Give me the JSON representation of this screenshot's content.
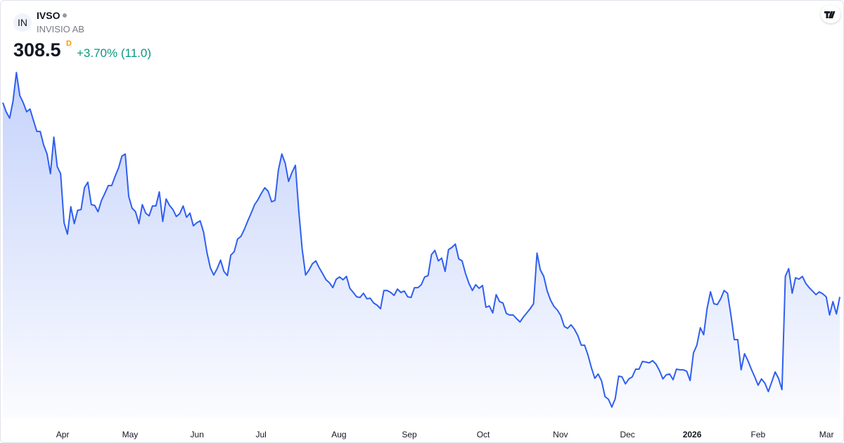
{
  "header": {
    "logo": "IN",
    "symbol": "IVSO",
    "name": "INVISIO AB",
    "price": "308.5",
    "interval": "D",
    "change": "+3.70% (11.0)"
  },
  "chart_data": {
    "type": "area",
    "xlim": [
      0,
      246
    ],
    "ylim": [
      230,
      500
    ],
    "xticks": [
      {
        "value": 17.6,
        "label": "Apr"
      },
      {
        "value": 37.4,
        "label": "May"
      },
      {
        "value": 57.1,
        "label": "Jun"
      },
      {
        "value": 75.9,
        "label": "Jul"
      },
      {
        "value": 98.8,
        "label": "Aug"
      },
      {
        "value": 119.5,
        "label": "Sep"
      },
      {
        "value": 141.2,
        "label": "Oct"
      },
      {
        "value": 163.9,
        "label": "Nov"
      },
      {
        "value": 183.6,
        "label": "Dec"
      },
      {
        "value": 202.6,
        "label": "2026",
        "bold": true
      },
      {
        "value": 222,
        "label": "Feb"
      },
      {
        "value": 242.1,
        "label": "Mar"
      }
    ],
    "series": [
      {
        "color": "#2f5ff0",
        "values": [
          434.1,
          428.2,
          424.1,
          435.0,
          453.6,
          438.6,
          434.1,
          428.2,
          430.0,
          422.7,
          415.5,
          415.5,
          406.8,
          400.9,
          388.2,
          411.8,
          392.7,
          388.2,
          356.4,
          349.1,
          366.8,
          355.9,
          364.5,
          365.0,
          379.1,
          382.7,
          368.2,
          367.7,
          363.6,
          370.9,
          375.5,
          380.5,
          380.5,
          386.4,
          391.8,
          399.5,
          400.9,
          373.6,
          365.9,
          363.6,
          355.9,
          368.2,
          362.7,
          360.9,
          367.3,
          367.3,
          376.4,
          357.3,
          371.8,
          367.7,
          365.0,
          360.5,
          362.3,
          367.3,
          360.0,
          362.7,
          354.5,
          356.4,
          357.7,
          350.5,
          337.3,
          327.3,
          322.7,
          326.8,
          332.3,
          325.0,
          322.3,
          335.5,
          337.7,
          345.9,
          347.7,
          352.3,
          357.7,
          362.7,
          368.2,
          371.4,
          375.5,
          379.1,
          376.8,
          370.0,
          370.9,
          390.5,
          400.9,
          395.0,
          383.2,
          389.1,
          393.6,
          363.6,
          339.1,
          322.7,
          325.9,
          330.0,
          331.8,
          327.3,
          323.6,
          319.6,
          317.7,
          314.5,
          320.0,
          321.4,
          319.6,
          321.8,
          314.1,
          311.4,
          308.6,
          308.2,
          310.9,
          307.3,
          307.7,
          304.6,
          303.2,
          300.9,
          312.7,
          312.7,
          311.4,
          309.5,
          313.6,
          311.4,
          312.3,
          308.6,
          308.2,
          314.5,
          314.5,
          316.4,
          321.4,
          322.3,
          335.9,
          338.6,
          331.8,
          333.6,
          325.0,
          339.1,
          340.5,
          342.7,
          333.2,
          331.8,
          323.6,
          317.3,
          312.7,
          316.4,
          314.1,
          315.9,
          301.8,
          302.7,
          298.2,
          310.0,
          305.5,
          304.6,
          297.8,
          296.8,
          296.8,
          294.5,
          292.3,
          295.5,
          298.2,
          300.9,
          304.1,
          336.8,
          325.9,
          321.8,
          312.3,
          306.4,
          302.3,
          300.0,
          296.4,
          289.5,
          288.2,
          290.5,
          287.7,
          283.6,
          277.3,
          277.3,
          270.9,
          262.7,
          255.9,
          258.7,
          254.1,
          244.1,
          242.3,
          237.3,
          242.7,
          257.3,
          256.8,
          252.3,
          255.5,
          256.8,
          261.8,
          261.8,
          266.8,
          266.4,
          265.9,
          267.3,
          265.0,
          260.9,
          255.5,
          258.2,
          258.7,
          255.0,
          261.8,
          261.4,
          261.4,
          260.5,
          254.5,
          272.3,
          277.3,
          288.6,
          284.1,
          300.9,
          311.8,
          304.1,
          303.6,
          307.3,
          312.7,
          310.9,
          296.8,
          280.9,
          280.9,
          261.4,
          271.8,
          267.3,
          261.8,
          256.8,
          251.4,
          255.5,
          252.7,
          247.3,
          253.6,
          260.0,
          255.9,
          248.6,
          321.8,
          326.8,
          310.9,
          320.9,
          320.0,
          321.8,
          317.3,
          314.5,
          312.3,
          310.0,
          311.8,
          310.5,
          308.6,
          296.8,
          305.5,
          297.5,
          308.5
        ]
      }
    ]
  }
}
